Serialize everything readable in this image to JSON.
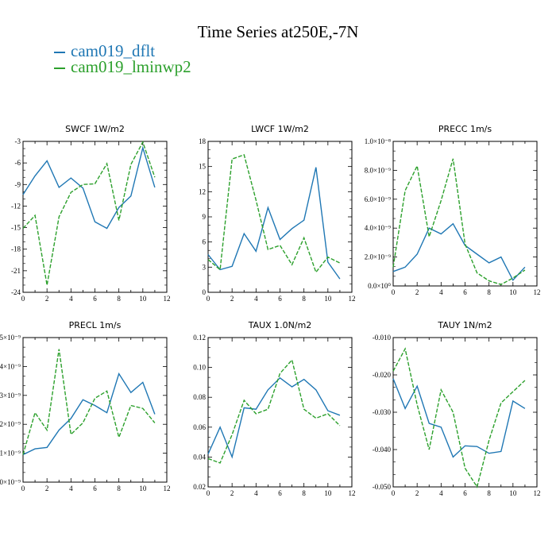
{
  "title": "Time Series at250E,-7N",
  "colors": {
    "dflt": "#1f77b4",
    "lminwp2": "#2ca02c"
  },
  "legend": [
    {
      "name": "cam019_dflt",
      "color": "#1f77b4"
    },
    {
      "name": "cam019_lminwp2",
      "color": "#2ca02c"
    }
  ],
  "chart_data": [
    {
      "type": "line",
      "title": "SWCF   1W/m2",
      "x": [
        0,
        1,
        2,
        3,
        4,
        5,
        6,
        7,
        8,
        9,
        10,
        11
      ],
      "xlim": [
        0,
        12
      ],
      "xticks": [
        "0",
        "2",
        "4",
        "6",
        "8",
        "10",
        "12"
      ],
      "ylim": [
        -24,
        -3
      ],
      "yticks": [
        "-24",
        "-21",
        "-18",
        "-15",
        "-12",
        "-9",
        "-6",
        "-3"
      ],
      "series": [
        {
          "name": "cam019_dflt",
          "values": [
            -10.4,
            -7.8,
            -5.7,
            -9.4,
            -8.1,
            -9.5,
            -14.2,
            -15.1,
            -12.2,
            -10.6,
            -3.9,
            -9.4
          ]
        },
        {
          "name": "cam019_lminwp2",
          "values": [
            -15.1,
            -13.3,
            -23.0,
            -13.5,
            -10.1,
            -9.0,
            -8.9,
            -6.1,
            -14.0,
            -6.2,
            -3.1,
            -8.0
          ]
        }
      ]
    },
    {
      "type": "line",
      "title": "LWCF   1W/m2",
      "x": [
        0,
        1,
        2,
        3,
        4,
        5,
        6,
        7,
        8,
        9,
        10,
        11
      ],
      "xlim": [
        0,
        12
      ],
      "xticks": [
        "0",
        "2",
        "4",
        "6",
        "8",
        "10",
        "12"
      ],
      "ylim": [
        0,
        18
      ],
      "yticks": [
        "0",
        "3",
        "6",
        "9",
        "12",
        "15",
        "18"
      ],
      "series": [
        {
          "name": "cam019_dflt",
          "values": [
            4.5,
            2.7,
            3.1,
            7.0,
            4.9,
            10.1,
            6.3,
            7.6,
            8.6,
            14.9,
            3.6,
            1.6
          ]
        },
        {
          "name": "cam019_lminwp2",
          "values": [
            3.9,
            2.7,
            15.9,
            16.4,
            11.0,
            5.1,
            5.6,
            3.3,
            6.5,
            2.4,
            4.2,
            3.5
          ]
        }
      ]
    },
    {
      "type": "line",
      "title": "PRECC   1m/s",
      "x": [
        0,
        1,
        2,
        3,
        4,
        5,
        6,
        7,
        8,
        9,
        10,
        11
      ],
      "xlim": [
        0,
        12
      ],
      "xticks": [
        "0",
        "2",
        "4",
        "6",
        "8",
        "10",
        "12"
      ],
      "ylim": [
        0,
        1e-08
      ],
      "yticks": [
        "0.0×10⁰",
        "2.0×10⁻⁹",
        "4.0×10⁻⁹",
        "6.0×10⁻⁹",
        "8.0×10⁻⁹",
        "1.0×10⁻⁸"
      ],
      "series": [
        {
          "name": "cam019_dflt",
          "values": [
            1e-09,
            1.3e-09,
            2.2e-09,
            4e-09,
            3.6e-09,
            4.3e-09,
            2.8e-09,
            2.2e-09,
            1.6e-09,
            2e-09,
            4e-10,
            1.3e-09
          ]
        },
        {
          "name": "cam019_lminwp2",
          "values": [
            1.3e-09,
            6.6e-09,
            8.3e-09,
            3.4e-09,
            5.9e-09,
            8.8e-09,
            2.9e-09,
            9e-10,
            3.5e-10,
            1e-10,
            5.5e-10,
            1.1e-09
          ]
        }
      ]
    },
    {
      "type": "line",
      "title": "PRECL   1m/s",
      "x": [
        0,
        1,
        2,
        3,
        4,
        5,
        6,
        7,
        8,
        9,
        10,
        11
      ],
      "xlim": [
        0,
        12
      ],
      "xticks": [
        "0",
        "2",
        "4",
        "6",
        "8",
        "10",
        "12"
      ],
      "ylim": [
        0,
        5
      ],
      "yticks": [
        "0×10⁻⁹",
        "1×10⁻⁹",
        "2×10⁻⁹",
        "3×10⁻⁹",
        "4×10⁻⁹",
        "5×10⁻⁹"
      ],
      "series": [
        {
          "name": "cam019_dflt",
          "values": [
            0.95,
            1.15,
            1.2,
            1.8,
            2.2,
            2.85,
            2.65,
            2.4,
            3.75,
            3.1,
            3.45,
            2.35
          ]
        },
        {
          "name": "cam019_lminwp2",
          "values": [
            0.95,
            2.4,
            1.8,
            4.6,
            1.65,
            2.05,
            2.9,
            3.15,
            1.55,
            2.65,
            2.55,
            2.05
          ]
        }
      ]
    },
    {
      "type": "line",
      "title": "TAUX   1.0N/m2",
      "x": [
        0,
        1,
        2,
        3,
        4,
        5,
        6,
        7,
        8,
        9,
        10,
        11
      ],
      "xlim": [
        0,
        12
      ],
      "xticks": [
        "0",
        "2",
        "4",
        "6",
        "8",
        "10",
        "12"
      ],
      "ylim": [
        0.02,
        0.12
      ],
      "yticks": [
        "0.02",
        "0.04",
        "0.06",
        "0.08",
        "0.10",
        "0.12"
      ],
      "series": [
        {
          "name": "cam019_dflt",
          "values": [
            0.042,
            0.06,
            0.04,
            0.073,
            0.072,
            0.085,
            0.093,
            0.087,
            0.092,
            0.085,
            0.071,
            0.068
          ]
        },
        {
          "name": "cam019_lminwp2",
          "values": [
            0.039,
            0.036,
            0.055,
            0.078,
            0.069,
            0.072,
            0.096,
            0.105,
            0.072,
            0.066,
            0.069,
            0.061
          ]
        }
      ]
    },
    {
      "type": "line",
      "title": "TAUY   1N/m2",
      "x": [
        0,
        1,
        2,
        3,
        4,
        5,
        6,
        7,
        8,
        9,
        10,
        11
      ],
      "xlim": [
        0,
        12
      ],
      "xticks": [
        "0",
        "2",
        "4",
        "6",
        "8",
        "10",
        "12"
      ],
      "ylim": [
        -0.05,
        -0.01
      ],
      "yticks": [
        "-0.050",
        "-0.040",
        "-0.030",
        "-0.020",
        "-0.010"
      ],
      "series": [
        {
          "name": "cam019_dflt",
          "values": [
            -0.021,
            -0.029,
            -0.023,
            -0.033,
            -0.034,
            -0.042,
            -0.039,
            -0.0392,
            -0.041,
            -0.0405,
            -0.027,
            -0.029
          ]
        },
        {
          "name": "cam019_lminwp2",
          "values": [
            -0.019,
            -0.013,
            -0.028,
            -0.04,
            -0.024,
            -0.03,
            -0.045,
            -0.05,
            -0.0375,
            -0.0275,
            -0.0245,
            -0.0215
          ]
        }
      ]
    }
  ]
}
